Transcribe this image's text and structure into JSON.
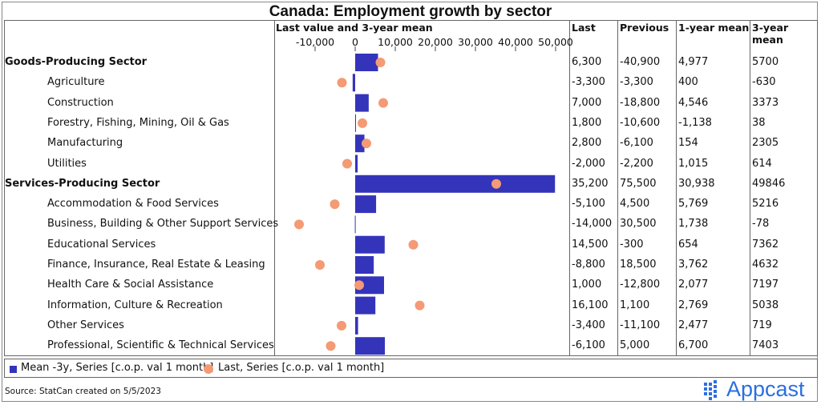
{
  "title": "Canada: Employment growth by sector",
  "headers": {
    "chart": "Last value and 3-year mean",
    "last": "Last",
    "previous": "Previous",
    "mean1": "1-year mean",
    "mean3": "3-year mean"
  },
  "rows": [
    {
      "label": "Goods-Producing Sector",
      "bold": true,
      "last": "6,300",
      "previous": "-40,900",
      "mean1": "4,977",
      "mean3": "5700"
    },
    {
      "label": "Agriculture",
      "bold": false,
      "last": "-3,300",
      "previous": "-3,300",
      "mean1": "400",
      "mean3": "-630"
    },
    {
      "label": "Construction",
      "bold": false,
      "last": "7,000",
      "previous": "-18,800",
      "mean1": "4,546",
      "mean3": "3373"
    },
    {
      "label": "Forestry, Fishing, Mining, Oil & Gas",
      "bold": false,
      "last": "1,800",
      "previous": "-10,600",
      "mean1": "-1,138",
      "mean3": "38"
    },
    {
      "label": "Manufacturing",
      "bold": false,
      "last": "2,800",
      "previous": "-6,100",
      "mean1": "154",
      "mean3": "2305"
    },
    {
      "label": "Utilities",
      "bold": false,
      "last": "-2,000",
      "previous": "-2,200",
      "mean1": "1,015",
      "mean3": "614"
    },
    {
      "label": "Services-Producing Sector",
      "bold": true,
      "last": "35,200",
      "previous": "75,500",
      "mean1": "30,938",
      "mean3": "49846"
    },
    {
      "label": "Accommodation & Food Services",
      "bold": false,
      "last": "-5,100",
      "previous": "4,500",
      "mean1": "5,769",
      "mean3": "5216"
    },
    {
      "label": "Business, Building & Other Support Services",
      "bold": false,
      "last": "-14,000",
      "previous": "30,500",
      "mean1": "1,738",
      "mean3": "-78"
    },
    {
      "label": "Educational Services",
      "bold": false,
      "last": "14,500",
      "previous": "-300",
      "mean1": "654",
      "mean3": "7362"
    },
    {
      "label": "Finance, Insurance, Real Estate & Leasing",
      "bold": false,
      "last": "-8,800",
      "previous": "18,500",
      "mean1": "3,762",
      "mean3": "4632"
    },
    {
      "label": "Health Care & Social Assistance",
      "bold": false,
      "last": "1,000",
      "previous": "-12,800",
      "mean1": "2,077",
      "mean3": "7197"
    },
    {
      "label": "Information, Culture & Recreation",
      "bold": false,
      "last": "16,100",
      "previous": "1,100",
      "mean1": "2,769",
      "mean3": "5038"
    },
    {
      "label": "Other Services",
      "bold": false,
      "last": "-3,400",
      "previous": "-11,100",
      "mean1": "2,477",
      "mean3": "719"
    },
    {
      "label": "Professional, Scientific & Technical Services",
      "bold": false,
      "last": "-6,100",
      "previous": "5,000",
      "mean1": "6,700",
      "mean3": "7403"
    }
  ],
  "legend": {
    "bar": "Mean -3y, Series [c.o.p. val 1 month]",
    "dot": "Last, Series [c.o.p. val 1 month]"
  },
  "source": "Source: StatCan created on 5/5/2023",
  "logo_text": "Appcast",
  "colors": {
    "bar": "#3434bb",
    "dot": "#f49a74",
    "logo": "#2b6fe0"
  },
  "chart_data": {
    "type": "bar",
    "orientation": "horizontal",
    "title": "Canada: Employment growth by sector",
    "xlabel": "Last value and 3-year mean",
    "xlim": [
      -15000,
      50000
    ],
    "xticks": [
      -10000,
      0,
      10000,
      20000,
      30000,
      40000,
      50000
    ],
    "xtick_labels": [
      "-10,000",
      "0",
      "10,000",
      "20,000",
      "30,000",
      "40,000",
      "50,000"
    ],
    "categories": [
      "Goods-Producing Sector",
      "Agriculture",
      "Construction",
      "Forestry, Fishing, Mining, Oil & Gas",
      "Manufacturing",
      "Utilities",
      "Services-Producing Sector",
      "Accommodation & Food Services",
      "Business, Building & Other Support Services",
      "Educational Services",
      "Finance, Insurance, Real Estate & Leasing",
      "Health Care & Social Assistance",
      "Information, Culture & Recreation",
      "Other Services",
      "Professional, Scientific & Technical Services"
    ],
    "series": [
      {
        "name": "Mean -3y, Series [c.o.p. val 1 month]",
        "kind": "bar",
        "values": [
          5700,
          -630,
          3373,
          38,
          2305,
          614,
          49846,
          5216,
          -78,
          7362,
          4632,
          7197,
          5038,
          719,
          7403
        ]
      },
      {
        "name": "Last, Series [c.o.p. val 1 month]",
        "kind": "dot",
        "values": [
          6300,
          -3300,
          7000,
          1800,
          2800,
          -2000,
          35200,
          -5100,
          -14000,
          14500,
          -8800,
          1000,
          16100,
          -3400,
          -6100
        ]
      }
    ],
    "legend_position": "bottom"
  }
}
